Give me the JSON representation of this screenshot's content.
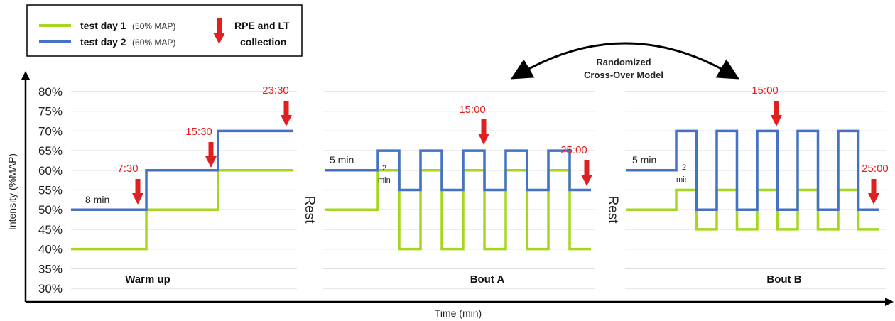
{
  "chart_data": {
    "type": "line",
    "ylabel": "Intensity (%MAP)",
    "xlabel": "Time (min)",
    "y_ticks": [
      "80%",
      "75%",
      "70%",
      "65%",
      "60%",
      "55%",
      "50%",
      "45%",
      "40%",
      "35%",
      "30%"
    ],
    "ylim": [
      30,
      80
    ],
    "grid": true,
    "legend": {
      "placement": "top-left",
      "series": [
        {
          "name": "test day 1",
          "note": "(50% MAP)",
          "color": "#a6d61e"
        },
        {
          "name": "test day 2",
          "note": "(60% MAP)",
          "color": "#4472c4"
        }
      ],
      "marker_label_1": "RPE and LT",
      "marker_label_2": "collection",
      "marker_color": "#e02020"
    },
    "annotation": {
      "line1": "Randomized",
      "line2": "Cross-Over Model"
    },
    "rest_label": "Rest",
    "panels": [
      {
        "title": "Warm up",
        "durations": [
          "8 min"
        ],
        "collection_times": [
          "7:30",
          "15:30",
          "23:30"
        ],
        "series": [
          {
            "name": "test day 1",
            "values": [
              40,
              40,
              50,
              50,
              60,
              60
            ]
          },
          {
            "name": "test day 2",
            "values": [
              50,
              50,
              60,
              60,
              70,
              70
            ]
          }
        ]
      },
      {
        "title": "Bout A",
        "durations": [
          "5 min",
          "2",
          "min"
        ],
        "collection_times": [
          "15:00",
          "25:00"
        ],
        "series": [
          {
            "name": "test day 1",
            "values": [
              50,
              60,
              40,
              60,
              40,
              60,
              40,
              60,
              40,
              60,
              40
            ]
          },
          {
            "name": "test day 2",
            "values": [
              60,
              65,
              55,
              65,
              55,
              65,
              55,
              65,
              55,
              65,
              55
            ]
          }
        ]
      },
      {
        "title": "Bout B",
        "durations": [
          "5 min",
          "2",
          "min"
        ],
        "collection_times": [
          "15:00",
          "25:00"
        ],
        "series": [
          {
            "name": "test day 1",
            "values": [
              50,
              55,
              45,
              55,
              45,
              55,
              45,
              55,
              45,
              55,
              45
            ]
          },
          {
            "name": "test day 2",
            "values": [
              60,
              70,
              50,
              70,
              50,
              70,
              50,
              70,
              50,
              70,
              50
            ]
          }
        ]
      }
    ]
  }
}
